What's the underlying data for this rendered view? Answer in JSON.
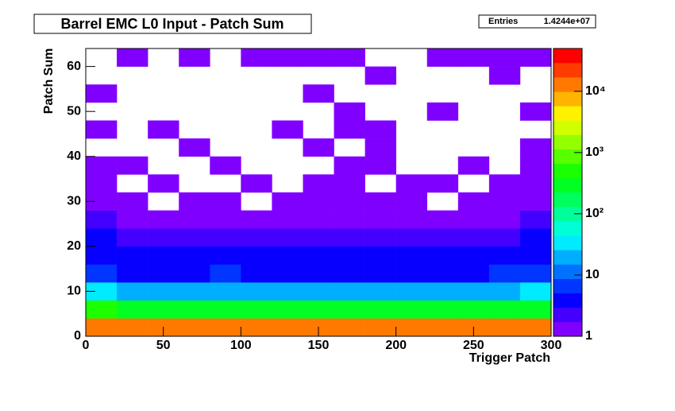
{
  "chart_data": {
    "type": "heatmap",
    "title": "Barrel EMC L0 Input - Patch Sum",
    "stats": {
      "name": "Entries",
      "value": "1.4244e+07"
    },
    "x_label": "Trigger Patch",
    "y_label": "Patch Sum",
    "xlim": [
      0,
      300
    ],
    "ylim": [
      0,
      64
    ],
    "zlim": [
      1,
      50000
    ],
    "zlog": true,
    "xticks": [
      0,
      50,
      100,
      150,
      200,
      250,
      300
    ],
    "yticks": [
      0,
      10,
      20,
      30,
      40,
      50,
      60
    ],
    "zticks": [
      1,
      10,
      {
        "value": 100,
        "label": "10²"
      },
      {
        "value": 1000,
        "label": "10³"
      },
      {
        "value": 10000,
        "label": "10⁴"
      }
    ],
    "xbins": [
      0,
      20,
      40,
      60,
      80,
      100,
      120,
      140,
      160,
      180,
      200,
      220,
      240,
      260,
      280,
      300
    ],
    "ybins": [
      0,
      4,
      8,
      12,
      16,
      20,
      24,
      28,
      32,
      36,
      40,
      44,
      48,
      52,
      56,
      60,
      64
    ],
    "z": [
      [
        15000,
        12000,
        11000,
        12000,
        13000,
        11000,
        12000,
        12000,
        11000,
        12000,
        12000,
        11000,
        12000,
        14000,
        13000
      ],
      [
        400,
        300,
        280,
        300,
        320,
        290,
        300,
        310,
        290,
        300,
        300,
        280,
        300,
        350,
        380
      ],
      [
        30,
        20,
        18,
        20,
        22,
        19,
        20,
        21,
        19,
        20,
        20,
        18,
        20,
        25,
        30
      ],
      [
        8,
        5,
        5,
        5,
        6,
        5,
        5,
        5,
        5,
        5,
        5,
        5,
        5,
        6,
        8
      ],
      [
        4,
        3,
        3,
        3,
        3,
        3,
        3,
        3,
        3,
        3,
        3,
        3,
        3,
        3,
        4
      ],
      [
        3,
        2,
        2,
        2,
        2,
        2,
        2,
        2,
        2,
        2,
        2,
        2,
        2,
        2,
        3
      ],
      [
        2,
        1,
        1,
        1,
        1,
        1,
        1,
        1,
        1,
        1,
        1,
        1,
        1,
        1,
        2
      ],
      [
        1,
        1,
        null,
        1,
        1,
        null,
        1,
        1,
        1,
        1,
        1,
        null,
        1,
        1,
        1
      ],
      [
        1,
        null,
        1,
        null,
        null,
        1,
        null,
        1,
        1,
        null,
        1,
        1,
        null,
        1,
        1
      ],
      [
        1,
        1,
        null,
        null,
        1,
        null,
        null,
        null,
        1,
        1,
        null,
        null,
        1,
        null,
        1
      ],
      [
        null,
        null,
        null,
        1,
        null,
        null,
        null,
        1,
        null,
        1,
        null,
        null,
        null,
        null,
        1
      ],
      [
        1,
        null,
        1,
        null,
        null,
        null,
        1,
        null,
        1,
        1,
        null,
        null,
        null,
        null,
        null
      ],
      [
        null,
        null,
        null,
        null,
        null,
        null,
        null,
        null,
        1,
        null,
        null,
        1,
        null,
        null,
        1
      ],
      [
        1,
        null,
        null,
        null,
        null,
        null,
        null,
        1,
        null,
        null,
        null,
        null,
        null,
        null,
        null
      ],
      [
        null,
        null,
        null,
        null,
        null,
        null,
        null,
        null,
        null,
        1,
        null,
        null,
        null,
        1,
        null
      ],
      [
        null,
        1,
        null,
        1,
        null,
        1,
        1,
        1,
        1,
        null,
        null,
        1,
        1,
        1,
        1
      ]
    ]
  }
}
